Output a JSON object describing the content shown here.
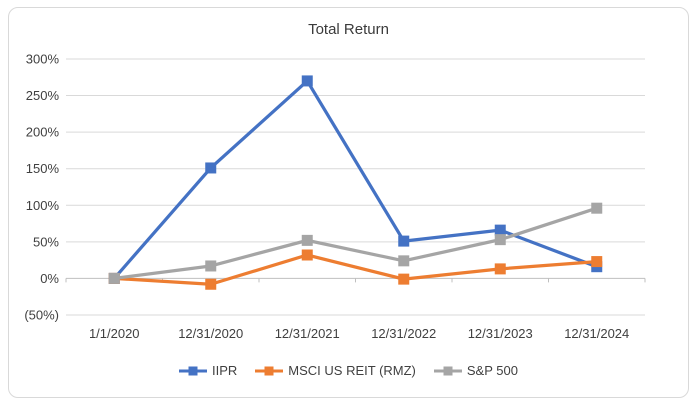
{
  "chart_data": {
    "type": "line",
    "title": "Total Return",
    "categories": [
      "1/1/2020",
      "12/31/2020",
      "12/31/2021",
      "12/31/2022",
      "12/31/2023",
      "12/31/2024"
    ],
    "series": [
      {
        "name": "IIPR",
        "color": "#4472C4",
        "marker": "square",
        "values": [
          0,
          151,
          270,
          51,
          66,
          16
        ]
      },
      {
        "name": "MSCI US REIT (RMZ)",
        "color": "#ED7D31",
        "marker": "square",
        "values": [
          0,
          -8,
          32,
          -1,
          13,
          23
        ]
      },
      {
        "name": "S&P 500",
        "color": "#A5A5A5",
        "marker": "square",
        "values": [
          0,
          17,
          52,
          24,
          53,
          96
        ]
      }
    ],
    "ylim": [
      -50,
      300
    ],
    "ytick_step": 50,
    "yticks": [
      {
        "value": 300,
        "label": "300%"
      },
      {
        "value": 250,
        "label": "250%"
      },
      {
        "value": 200,
        "label": "200%"
      },
      {
        "value": 150,
        "label": "150%"
      },
      {
        "value": 100,
        "label": "100%"
      },
      {
        "value": 50,
        "label": "50%"
      },
      {
        "value": 0,
        "label": "0%"
      },
      {
        "value": -50,
        "label": "(50%)"
      }
    ],
    "grid": true,
    "legend_position": "bottom",
    "colors": {
      "gridline": "#D9D9D9",
      "axis": "#BFBFBF",
      "tick_text": "#404040",
      "title_text": "#3b3b3b",
      "border": "#D9D9D9",
      "background": "#FFFFFF"
    }
  }
}
